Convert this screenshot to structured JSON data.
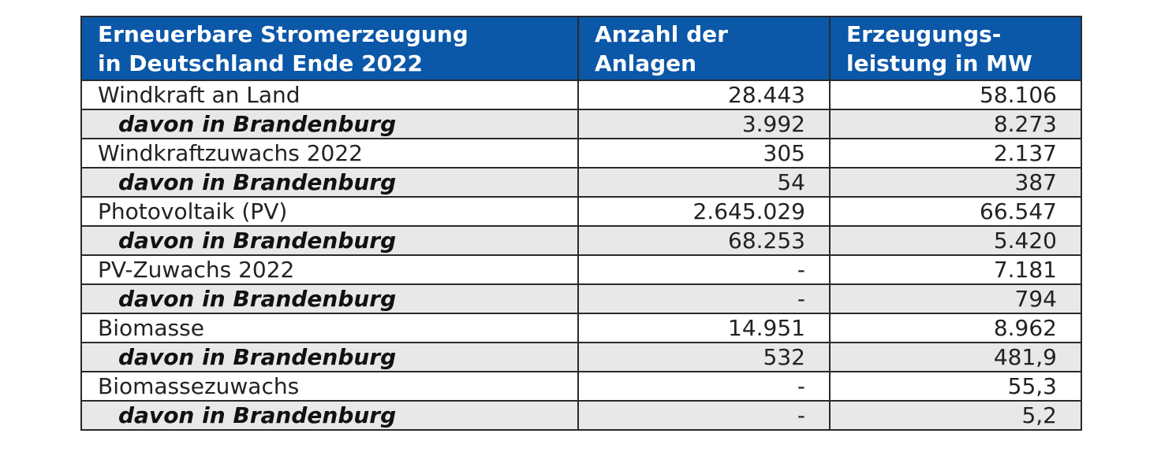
{
  "table": {
    "headers": [
      "Erneuerbare Stromerzeugung\nin Deutschland Ende 2022",
      "Anzahl der\nAnlagen",
      "Erzeugungs-\nleistung in MW"
    ],
    "rows": [
      {
        "label": "Windkraft an Land",
        "anlagen": "28.443",
        "leistung": "58.106",
        "sub": false
      },
      {
        "label": "davon in Brandenburg",
        "anlagen": "3.992",
        "leistung": "8.273",
        "sub": true
      },
      {
        "label": "Windkraftzuwachs 2022",
        "anlagen": "305",
        "leistung": "2.137",
        "sub": false
      },
      {
        "label": "davon in Brandenburg",
        "anlagen": "54",
        "leistung": "387",
        "sub": true
      },
      {
        "label": "Photovoltaik (PV)",
        "anlagen": "2.645.029",
        "leistung": "66.547",
        "sub": false
      },
      {
        "label": "davon in Brandenburg",
        "anlagen": "68.253",
        "leistung": "5.420",
        "sub": true
      },
      {
        "label": "PV-Zuwachs 2022",
        "anlagen": "-",
        "leistung": "7.181",
        "sub": false
      },
      {
        "label": "davon in Brandenburg",
        "anlagen": "-",
        "leistung": "794",
        "sub": true
      },
      {
        "label": "Biomasse",
        "anlagen": "14.951",
        "leistung": "8.962",
        "sub": false
      },
      {
        "label": "davon in Brandenburg",
        "anlagen": "532",
        "leistung": "481,9",
        "sub": true
      },
      {
        "label": "Biomassezuwachs",
        "anlagen": "-",
        "leistung": "55,3",
        "sub": false
      },
      {
        "label": "davon in Brandenburg",
        "anlagen": "-",
        "leistung": "5,2",
        "sub": true
      }
    ]
  },
  "colors": {
    "header_bg": "#0b57a8",
    "header_text": "#ffffff",
    "sub_row_bg": "#e8e8e8",
    "border": "#2a2a2a"
  }
}
